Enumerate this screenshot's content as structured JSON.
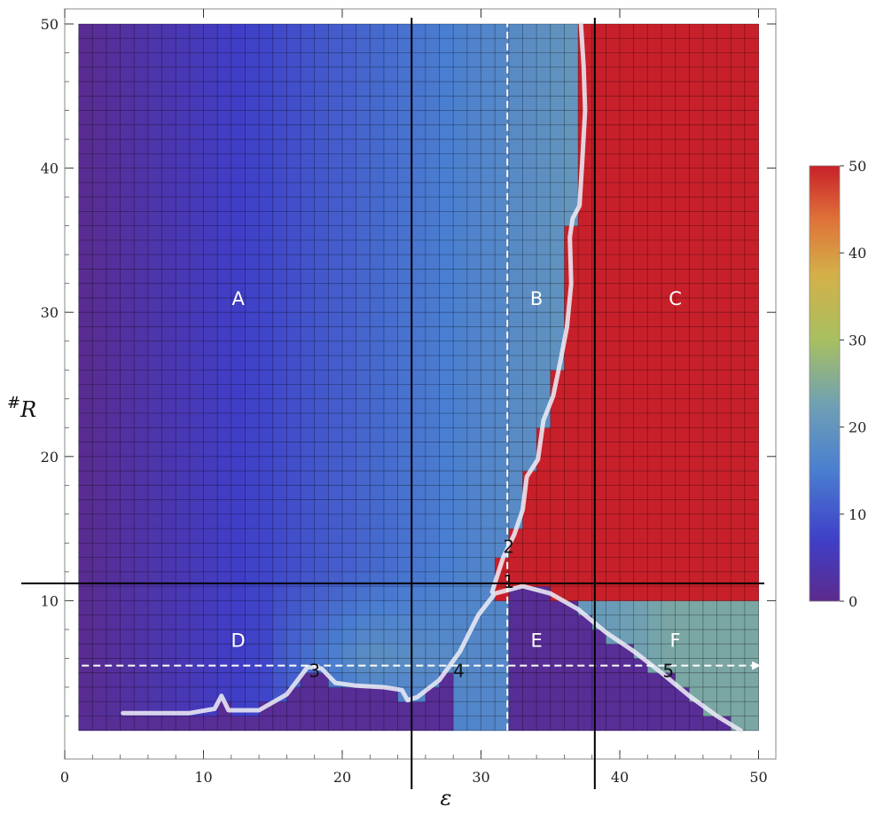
{
  "chart_data": {
    "type": "heatmap",
    "title": "",
    "xlabel": "ε",
    "ylabel": "#R",
    "xlim": [
      0,
      50
    ],
    "ylim": [
      0,
      50
    ],
    "x_ticks": [
      "0",
      "10",
      "20",
      "30",
      "40",
      "50"
    ],
    "y_ticks": [
      "10",
      "20",
      "30",
      "40",
      "50"
    ],
    "colorbar": {
      "min": 0,
      "max": 50,
      "ticks": [
        "0",
        "10",
        "20",
        "30",
        "40",
        "50"
      ]
    },
    "grid_range": {
      "x": [
        1,
        50
      ],
      "y": [
        1,
        50
      ]
    },
    "color_stops": [
      "#5c2a8c",
      "#3f3fc8",
      "#4a7ed0",
      "#6fa0b4",
      "#a8c060",
      "#d4b048",
      "#df7038",
      "#c8202a"
    ],
    "boundary": [
      [
        4.2,
        2.2
      ],
      [
        9,
        2.2
      ],
      [
        10.8,
        2.5
      ],
      [
        11.3,
        3.4
      ],
      [
        11.8,
        2.4
      ],
      [
        14,
        2.4
      ],
      [
        16,
        3.5
      ],
      [
        17.5,
        5.4
      ],
      [
        18.5,
        5.3
      ],
      [
        19.5,
        4.3
      ],
      [
        21,
        4.1
      ],
      [
        23,
        4.0
      ],
      [
        24.3,
        3.8
      ],
      [
        24.7,
        3.1
      ],
      [
        25.4,
        3.3
      ],
      [
        27,
        4.5
      ],
      [
        28.5,
        6.5
      ],
      [
        29.8,
        9.0
      ],
      [
        31,
        10.5
      ],
      [
        33,
        11.0
      ],
      [
        35,
        10.5
      ],
      [
        37,
        9.4
      ],
      [
        39,
        7.8
      ],
      [
        41,
        6.5
      ],
      [
        43,
        5.0
      ],
      [
        45,
        3.4
      ],
      [
        47,
        2.0
      ],
      [
        48.7,
        1.0
      ]
    ],
    "b_ridge": [
      [
        30.8,
        10.6
      ],
      [
        31.6,
        13.0
      ],
      [
        32.4,
        14.6
      ],
      [
        33,
        16.3
      ],
      [
        33.3,
        18.6
      ],
      [
        34.1,
        19.8
      ],
      [
        34.5,
        22.5
      ],
      [
        35.2,
        24.2
      ],
      [
        35.7,
        26.5
      ],
      [
        36.2,
        29
      ],
      [
        36.5,
        32
      ],
      [
        36.4,
        35.2
      ],
      [
        36.6,
        36.5
      ],
      [
        37.1,
        37.4
      ],
      [
        37.3,
        40.5
      ],
      [
        37.5,
        44
      ],
      [
        37.4,
        47
      ],
      [
        37.2,
        50
      ]
    ],
    "threshold_x": 32,
    "horizontal_line_y": 11.2,
    "vertical_lines_x": [
      25,
      38.2
    ],
    "dashed_vertical_x": 31.9,
    "dashed_horizontal_y": 5.5,
    "regions": [
      {
        "label": "A",
        "x": 12.5,
        "y": 30.5
      },
      {
        "label": "B",
        "x": 34,
        "y": 30.5
      },
      {
        "label": "C",
        "x": 44,
        "y": 30.5
      },
      {
        "label": "D",
        "x": 12.5,
        "y": 6.8
      },
      {
        "label": "E",
        "x": 34,
        "y": 6.8
      },
      {
        "label": "F",
        "x": 44,
        "y": 6.8
      }
    ],
    "points": [
      {
        "label": "1",
        "x": 32,
        "y": 10.9
      },
      {
        "label": "2",
        "x": 32,
        "y": 13.3
      },
      {
        "label": "3",
        "x": 18,
        "y": 4.7
      },
      {
        "label": "4",
        "x": 28.4,
        "y": 4.7
      },
      {
        "label": "5",
        "x": 43.5,
        "y": 4.7
      }
    ]
  }
}
